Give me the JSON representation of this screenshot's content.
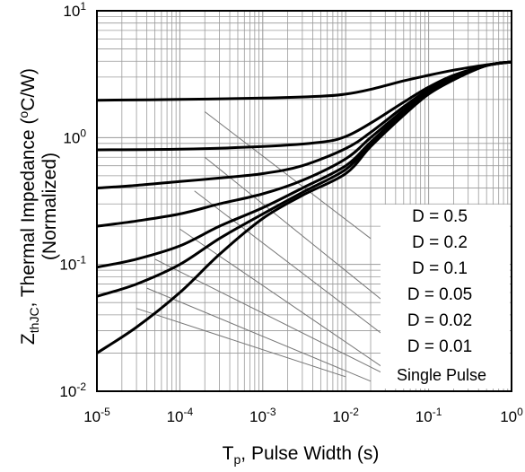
{
  "chart_data": {
    "type": "line",
    "xlabel": {
      "main": "T",
      "sub": "p",
      "rest": ", Pulse Width (s)"
    },
    "ylabel": {
      "line1_main": "Z",
      "line1_sub": "thJC",
      "line1_rest": ", Thermal Impedance (",
      "line1_sup": "o",
      "line1_end": "C/W)",
      "line2": "(Normalized)"
    },
    "x_scale": "log",
    "y_scale": "log",
    "xlim": [
      1e-05,
      1
    ],
    "ylim": [
      0.01,
      10
    ],
    "grid": true,
    "legend_position": "bottom-right",
    "x_ticks": [
      {
        "base": "10",
        "exp": "-5",
        "value": 1e-05
      },
      {
        "base": "10",
        "exp": "-4",
        "value": 0.0001
      },
      {
        "base": "10",
        "exp": "-3",
        "value": 0.001
      },
      {
        "base": "10",
        "exp": "-2",
        "value": 0.01
      },
      {
        "base": "10",
        "exp": "-1",
        "value": 0.1
      },
      {
        "base": "10",
        "exp": "0",
        "value": 1
      }
    ],
    "y_ticks": [
      {
        "base": "10",
        "exp": "1",
        "value": 10
      },
      {
        "base": "10",
        "exp": "0",
        "value": 1
      },
      {
        "base": "10",
        "exp": "-1",
        "value": 0.1
      },
      {
        "base": "10",
        "exp": "-2",
        "value": 0.01
      }
    ],
    "series": [
      {
        "name": "D = 0.5",
        "x": [
          1e-05,
          0.0001,
          0.001,
          0.005,
          0.01,
          0.02,
          0.05,
          0.1,
          0.2,
          0.5,
          1
        ],
        "y": [
          1.97,
          2.0,
          2.05,
          2.12,
          2.2,
          2.4,
          2.8,
          3.1,
          3.4,
          3.75,
          3.95
        ]
      },
      {
        "name": "D = 0.2",
        "x": [
          1e-05,
          0.0001,
          0.001,
          0.005,
          0.01,
          0.02,
          0.05,
          0.1,
          0.2,
          0.5,
          1
        ],
        "y": [
          0.8,
          0.81,
          0.85,
          0.92,
          1.02,
          1.3,
          1.9,
          2.5,
          3.1,
          3.7,
          3.95
        ]
      },
      {
        "name": "D = 0.1",
        "x": [
          1e-05,
          3e-05,
          0.0001,
          0.0003,
          0.001,
          0.003,
          0.01,
          0.02,
          0.05,
          0.1,
          0.2,
          0.5,
          1
        ],
        "y": [
          0.4,
          0.42,
          0.45,
          0.48,
          0.52,
          0.6,
          0.82,
          1.1,
          1.75,
          2.4,
          3.05,
          3.7,
          3.95
        ]
      },
      {
        "name": "D = 0.05",
        "x": [
          1e-05,
          3e-05,
          0.0001,
          0.0003,
          0.001,
          0.003,
          0.01,
          0.02,
          0.05,
          0.1,
          0.2,
          0.5,
          1
        ],
        "y": [
          0.2,
          0.22,
          0.25,
          0.3,
          0.36,
          0.46,
          0.68,
          1.0,
          1.65,
          2.35,
          3.0,
          3.7,
          3.95
        ]
      },
      {
        "name": "D = 0.02",
        "x": [
          1e-05,
          3e-05,
          0.0001,
          0.0003,
          0.001,
          0.003,
          0.01,
          0.02,
          0.05,
          0.1,
          0.2,
          0.5,
          1
        ],
        "y": [
          0.095,
          0.11,
          0.14,
          0.2,
          0.28,
          0.4,
          0.6,
          0.92,
          1.6,
          2.3,
          2.95,
          3.7,
          3.95
        ]
      },
      {
        "name": "D = 0.01",
        "x": [
          1e-05,
          3e-05,
          0.0001,
          0.0003,
          0.001,
          0.003,
          0.01,
          0.02,
          0.05,
          0.1,
          0.2,
          0.5,
          1
        ],
        "y": [
          0.056,
          0.07,
          0.1,
          0.16,
          0.25,
          0.37,
          0.56,
          0.9,
          1.55,
          2.25,
          2.9,
          3.7,
          3.95
        ]
      },
      {
        "name": "Single Pulse",
        "x": [
          1e-05,
          3e-05,
          0.0001,
          0.0003,
          0.001,
          0.003,
          0.01,
          0.02,
          0.05,
          0.1,
          0.2,
          0.5,
          1
        ],
        "y": [
          0.02,
          0.032,
          0.06,
          0.12,
          0.23,
          0.35,
          0.52,
          0.85,
          1.5,
          2.2,
          2.85,
          3.7,
          3.95
        ]
      }
    ],
    "duty_cycle_guides": [
      {
        "x": [
          0.0002,
          0.02
        ],
        "y": [
          1.6,
          0.16
        ]
      },
      {
        "x": [
          0.0002,
          0.03
        ],
        "y": [
          0.7,
          0.05
        ]
      },
      {
        "x": [
          0.00015,
          0.05
        ],
        "y": [
          0.38,
          0.021
        ]
      },
      {
        "x": [
          0.0001,
          0.06
        ],
        "y": [
          0.19,
          0.011
        ]
      },
      {
        "x": [
          5e-05,
          0.05
        ],
        "y": [
          0.11,
          0.0115
        ]
      },
      {
        "x": [
          4e-05,
          0.02
        ],
        "y": [
          0.065,
          0.012
        ]
      },
      {
        "x": [
          3e-05,
          0.01
        ],
        "y": [
          0.045,
          0.013
        ]
      }
    ]
  }
}
